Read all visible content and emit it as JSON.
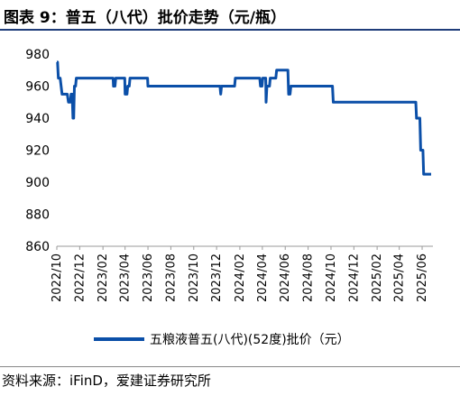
{
  "title": "图表 9：普五（八代）批价走势（元/瓶）",
  "source": "资料来源：iFinD，爱建证券研究所",
  "colors": {
    "line": "#0b4fa8",
    "title_rule": "#1f3d7a",
    "axis": "#999999",
    "text": "#000000"
  },
  "chart_data": {
    "type": "line",
    "title": "",
    "xlabel": "",
    "ylabel": "",
    "ylim": [
      860,
      980
    ],
    "yticks": [
      "860",
      "880",
      "900",
      "920",
      "940",
      "960",
      "980"
    ],
    "xlim": [
      "2022-10-01",
      "2025-06-25"
    ],
    "xticks": [
      "2022/10",
      "2022/12",
      "2023/02",
      "2023/04",
      "2023/06",
      "2023/08",
      "2023/10",
      "2023/12",
      "2024/02",
      "2024/04",
      "2024/06",
      "2024/08",
      "2024/10",
      "2024/12",
      "2025/02",
      "2025/04",
      "2025/06"
    ],
    "grid": false,
    "legend": "bottom",
    "series": [
      {
        "name": "五粮液普五(八代)(52度)批价（元）",
        "points": [
          [
            "2022-10-01",
            975
          ],
          [
            "2022-10-03",
            975
          ],
          [
            "2022-10-05",
            965
          ],
          [
            "2022-10-10",
            965
          ],
          [
            "2022-10-15",
            955
          ],
          [
            "2022-10-29",
            955
          ],
          [
            "2022-11-01",
            950
          ],
          [
            "2022-11-06",
            950
          ],
          [
            "2022-11-08",
            955
          ],
          [
            "2022-11-11",
            955
          ],
          [
            "2022-11-13",
            940
          ],
          [
            "2022-11-15",
            940
          ],
          [
            "2022-11-17",
            960
          ],
          [
            "2022-11-20",
            960
          ],
          [
            "2022-11-22",
            965
          ],
          [
            "2023-02-28",
            965
          ],
          [
            "2023-03-01",
            960
          ],
          [
            "2023-03-05",
            960
          ],
          [
            "2023-03-07",
            965
          ],
          [
            "2023-03-31",
            965
          ],
          [
            "2023-04-01",
            955
          ],
          [
            "2023-04-06",
            955
          ],
          [
            "2023-04-08",
            960
          ],
          [
            "2023-04-12",
            960
          ],
          [
            "2023-04-14",
            965
          ],
          [
            "2023-05-31",
            965
          ],
          [
            "2023-06-01",
            960
          ],
          [
            "2023-12-10",
            960
          ],
          [
            "2023-12-12",
            955
          ],
          [
            "2023-12-14",
            960
          ],
          [
            "2024-01-18",
            960
          ],
          [
            "2024-01-20",
            965
          ],
          [
            "2024-03-25",
            965
          ],
          [
            "2024-03-27",
            960
          ],
          [
            "2024-03-31",
            960
          ],
          [
            "2024-04-02",
            965
          ],
          [
            "2024-04-10",
            965
          ],
          [
            "2024-04-11",
            950
          ],
          [
            "2024-04-13",
            960
          ],
          [
            "2024-04-20",
            960
          ],
          [
            "2024-04-22",
            965
          ],
          [
            "2024-05-07",
            965
          ],
          [
            "2024-05-09",
            970
          ],
          [
            "2024-06-08",
            970
          ],
          [
            "2024-06-10",
            955
          ],
          [
            "2024-06-14",
            955
          ],
          [
            "2024-06-16",
            960
          ],
          [
            "2024-10-05",
            960
          ],
          [
            "2024-10-07",
            950
          ],
          [
            "2025-05-15",
            950
          ],
          [
            "2025-05-17",
            940
          ],
          [
            "2025-05-26",
            940
          ],
          [
            "2025-05-28",
            920
          ],
          [
            "2025-06-03",
            920
          ],
          [
            "2025-06-05",
            905
          ],
          [
            "2025-06-25",
            905
          ]
        ]
      }
    ]
  }
}
